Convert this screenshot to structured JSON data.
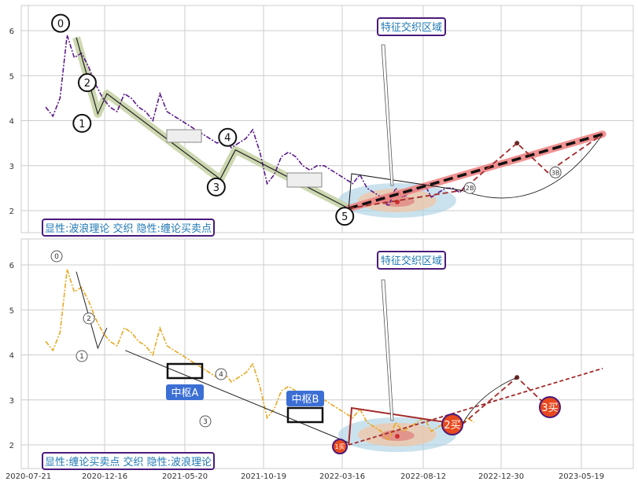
{
  "chart_data": [
    {
      "panel": "top",
      "type": "line",
      "x_ticks": [
        "2020-07-21",
        "2020-12-16",
        "2021-05-20",
        "2021-10-19",
        "2022-03-16",
        "2022-08-12",
        "2022-12-30",
        "2023-05-19"
      ],
      "y_ticks": [
        2,
        3,
        4,
        5,
        6
      ],
      "ylim": [
        1.5,
        6.5
      ],
      "grid": true,
      "annotation_box": "特征交织区域",
      "legend_text": "显性:波浪理论 交织 隐性:缠论买卖点",
      "wave_labels": [
        "0",
        "1",
        "2",
        "3",
        "4",
        "5"
      ],
      "projection_labels": [
        "2B",
        "3B"
      ],
      "series": [
        {
          "values": [
            4.3,
            4.1,
            4.5,
            5.9,
            5.4,
            5.5,
            5.2,
            4.8,
            4.5,
            4.3,
            4.2,
            4.6,
            4.5,
            4.3,
            4.2,
            4.0,
            4.6,
            4.2,
            4.1,
            4.0,
            3.9,
            3.8,
            3.7,
            3.6,
            3.5,
            3.6,
            3.4,
            3.5,
            3.6,
            3.8,
            3.3,
            2.6,
            2.8,
            3.2,
            3.3,
            3.2,
            3.0,
            2.9,
            3.0,
            3.0,
            2.9,
            2.8,
            2.7,
            2.6,
            2.8,
            2.5,
            2.4,
            2.3,
            2.1,
            2.5,
            2.3,
            2.4,
            2.5,
            2.6,
            2.3,
            2.4,
            2.5,
            2.5,
            2.4,
            2.6,
            2.5
          ]
        }
      ],
      "wave_points": [
        [
          0.09,
          5.85
        ],
        [
          0.125,
          4.15
        ],
        [
          0.14,
          4.6
        ],
        [
          0.325,
          2.7
        ],
        [
          0.35,
          3.35
        ],
        [
          0.535,
          2.05
        ]
      ],
      "projection": [
        [
          0.535,
          2.05
        ],
        [
          0.72,
          2.45
        ],
        [
          0.81,
          3.5
        ],
        [
          0.86,
          2.85
        ],
        [
          0.95,
          3.7
        ]
      ],
      "trend_line": [
        [
          0.535,
          2.05
        ],
        [
          0.95,
          3.7
        ]
      ]
    },
    {
      "panel": "bottom",
      "type": "line",
      "x_ticks": [
        "2020-07-21",
        "2020-12-16",
        "2021-05-20",
        "2021-10-19",
        "2022-03-16",
        "2022-08-12",
        "2022-12-30",
        "2023-05-19"
      ],
      "y_ticks": [
        2,
        3,
        4,
        5,
        6
      ],
      "ylim": [
        1.5,
        6.5
      ],
      "grid": true,
      "annotation_box": "特征交织区域",
      "legend_text": "显性:缠论买卖点 交织 隐性:波浪理论",
      "zhongshu_labels": [
        "中枢A",
        "中枢B"
      ],
      "buy_labels": [
        "1买",
        "2买",
        "3买"
      ],
      "wave_labels": [
        "0",
        "1",
        "2",
        "3",
        "4"
      ],
      "series": [
        {
          "values": [
            4.3,
            4.1,
            4.5,
            5.9,
            5.4,
            5.5,
            5.2,
            4.8,
            4.5,
            4.3,
            4.2,
            4.6,
            4.5,
            4.3,
            4.2,
            4.0,
            4.6,
            4.2,
            4.1,
            4.0,
            3.9,
            3.8,
            3.7,
            3.6,
            3.5,
            3.6,
            3.4,
            3.5,
            3.6,
            3.8,
            3.3,
            2.6,
            2.8,
            3.2,
            3.3,
            3.2,
            3.0,
            2.9,
            3.0,
            3.0,
            2.9,
            2.8,
            2.7,
            2.6,
            2.8,
            2.5,
            2.4,
            2.3,
            2.1,
            2.5,
            2.3,
            2.4,
            2.5,
            2.6,
            2.3,
            2.4,
            2.5,
            2.5,
            2.4,
            2.6,
            2.5
          ]
        }
      ]
    }
  ],
  "colors": {
    "top_series": "#5b1a8c",
    "bottom_series": "#e8a820",
    "wave_band": "#c8d4a8",
    "trend_red": "#f08080",
    "projection": "#a52a2a",
    "box_border": "#4b1a7a",
    "zhongshu_bg": "#3b6fd4",
    "buy_point": "#e8491d"
  }
}
